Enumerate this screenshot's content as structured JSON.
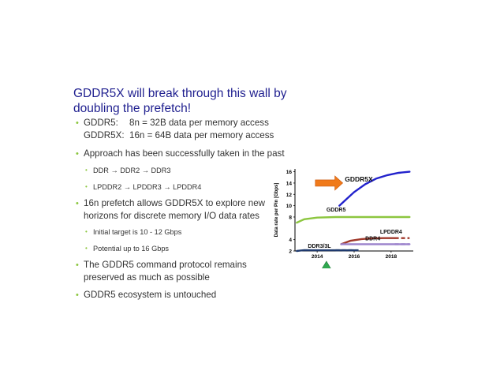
{
  "slide": {
    "title_line1": "GDDR5X will break through this wall by",
    "title_line2": "doubling the prefetch!",
    "bullets": {
      "gddr5_key": "GDDR5:",
      "gddr5_val": "8n = 32B data per memory access",
      "gddr5x_key": "GDDR5X:",
      "gddr5x_val": "16n = 64B data per memory access",
      "approach": "Approach has been successfully taken in the past",
      "sub_ddr": "DDR → DDR2 → DDR3",
      "sub_lpddr": "LPDDR2 → LPDDR3 → LPDDR4",
      "prefetch_l1": "16n prefetch allows GDDR5X to explore new",
      "prefetch_l2": "horizons for discrete memory I/O data rates",
      "sub_target": "Initial target is 10 - 12 Gbps",
      "sub_potential": "Potential up to 16 Gbps",
      "protocol_l1": "The GDDR5 command protocol remains",
      "protocol_l2": "preserved as much as possible",
      "ecosystem": "GDDR5 ecosystem is untouched"
    }
  },
  "chart_data": {
    "type": "line",
    "ylabel": "Data rate per Pin [Gbps]",
    "xlabel": "",
    "x_ticks": [
      "2014",
      "2016",
      "2018"
    ],
    "y_ticks": [
      "2",
      "4",
      "8",
      "10",
      "12",
      "14",
      "16"
    ],
    "xlim": [
      2012.8,
      2019.2
    ],
    "ylim": [
      2,
      16.5
    ],
    "series": [
      {
        "name": "GDDR5X",
        "color": "#2222cc",
        "x": [
          2015.2,
          2015.6,
          2016.0,
          2016.6,
          2017.2,
          2017.8,
          2018.4,
          2019.0
        ],
        "y": [
          10.0,
          11.2,
          12.4,
          13.8,
          14.8,
          15.4,
          15.8,
          16.0
        ]
      },
      {
        "name": "GDDR5",
        "color": "#8cc63f",
        "x": [
          2012.9,
          2013.3,
          2014.0,
          2015.0,
          2016.0,
          2017.0,
          2018.0,
          2019.0
        ],
        "y": [
          7.0,
          7.6,
          7.9,
          8.0,
          8.0,
          8.0,
          8.0,
          8.0
        ]
      },
      {
        "name": "LPDDR4",
        "color": "#a0392b",
        "x": [
          2015.3,
          2015.8,
          2016.4,
          2017.0,
          2017.6,
          2018.2
        ],
        "y": [
          3.2,
          3.8,
          4.1,
          4.25,
          4.27,
          4.27
        ]
      },
      {
        "name": "DDR4",
        "color": "#9b82cc",
        "x": [
          2015.3,
          2016.0,
          2017.0,
          2018.0,
          2019.0
        ],
        "y": [
          3.2,
          3.2,
          3.2,
          3.2,
          3.2
        ]
      },
      {
        "name": "DDR3/3L",
        "color": "#1f3a6e",
        "x": [
          2012.9,
          2013.3,
          2013.8,
          2014.5,
          2015.2,
          2016.0
        ],
        "y": [
          2.0,
          2.15,
          2.13,
          2.13,
          2.13,
          2.13
        ]
      }
    ],
    "annotations": [
      "arrow toward 2015 at ~14 Gbps (orange)",
      "green triangle marker at 2014.5"
    ],
    "grid": false
  }
}
